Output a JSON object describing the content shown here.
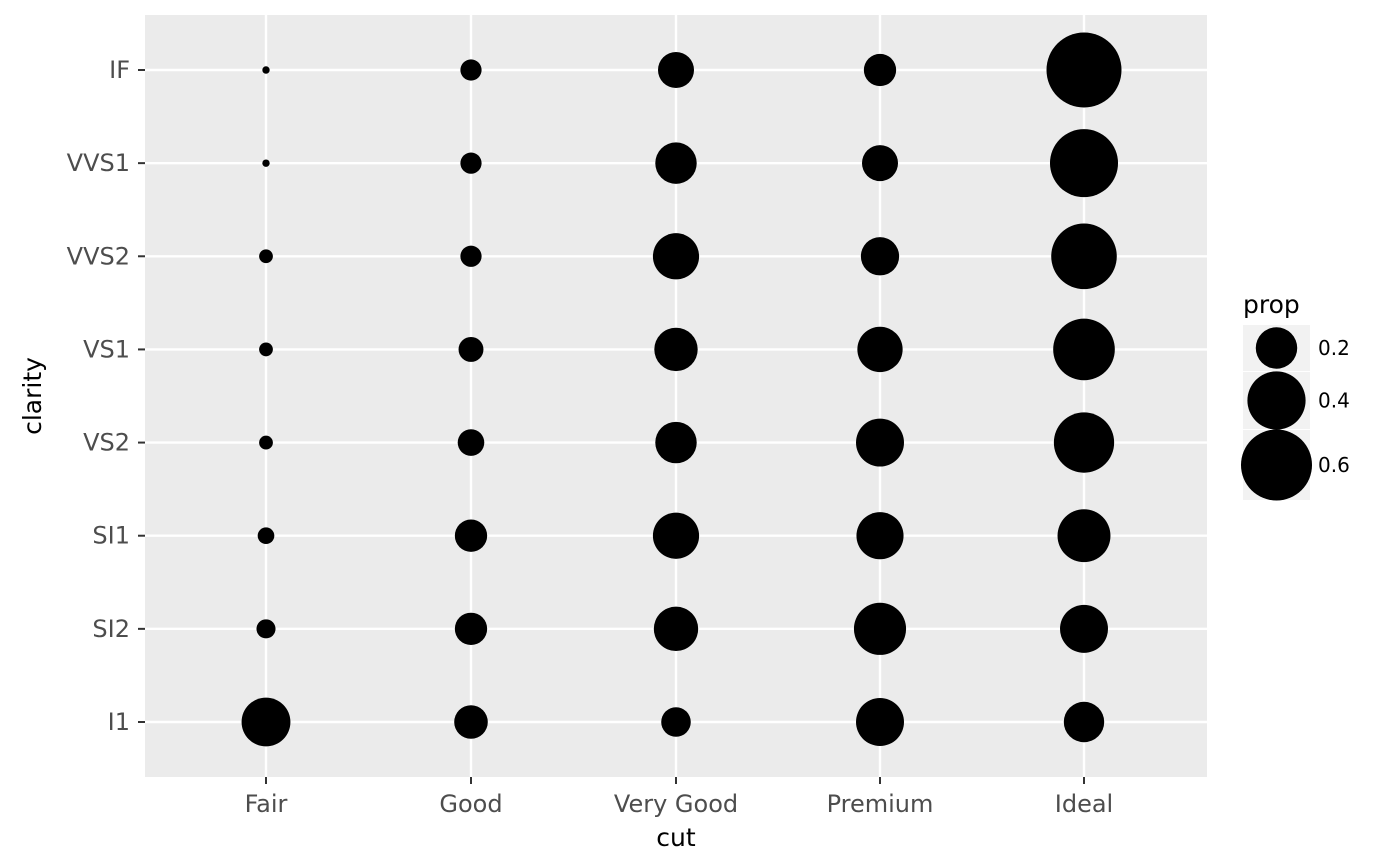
{
  "chart_data": {
    "type": "scatter",
    "title": "",
    "xlabel": "cut",
    "ylabel": "clarity",
    "x_categories": [
      "Fair",
      "Good",
      "Very Good",
      "Premium",
      "Ideal"
    ],
    "y_categories": [
      "I1",
      "SI2",
      "SI1",
      "VS2",
      "VS1",
      "VVS2",
      "VVS1",
      "IF"
    ],
    "size_variable": "prop",
    "points": [
      {
        "x": "Fair",
        "y": "I1",
        "prop": 0.28
      },
      {
        "x": "Fair",
        "y": "SI2",
        "prop": 0.04
      },
      {
        "x": "Fair",
        "y": "SI1",
        "prop": 0.03
      },
      {
        "x": "Fair",
        "y": "VS2",
        "prop": 0.02
      },
      {
        "x": "Fair",
        "y": "VS1",
        "prop": 0.02
      },
      {
        "x": "Fair",
        "y": "VVS2",
        "prop": 0.02
      },
      {
        "x": "Fair",
        "y": "VVS1",
        "prop": 0.005
      },
      {
        "x": "Fair",
        "y": "IF",
        "prop": 0.005
      },
      {
        "x": "Good",
        "y": "I1",
        "prop": 0.13
      },
      {
        "x": "Good",
        "y": "SI2",
        "prop": 0.12
      },
      {
        "x": "Good",
        "y": "SI1",
        "prop": 0.12
      },
      {
        "x": "Good",
        "y": "VS2",
        "prop": 0.08
      },
      {
        "x": "Good",
        "y": "VS1",
        "prop": 0.07
      },
      {
        "x": "Good",
        "y": "VVS2",
        "prop": 0.05
      },
      {
        "x": "Good",
        "y": "VVS1",
        "prop": 0.05
      },
      {
        "x": "Good",
        "y": "IF",
        "prop": 0.05
      },
      {
        "x": "Very Good",
        "y": "I1",
        "prop": 0.1
      },
      {
        "x": "Very Good",
        "y": "SI2",
        "prop": 0.23
      },
      {
        "x": "Very Good",
        "y": "SI1",
        "prop": 0.25
      },
      {
        "x": "Very Good",
        "y": "VS2",
        "prop": 0.2
      },
      {
        "x": "Very Good",
        "y": "VS1",
        "prop": 0.22
      },
      {
        "x": "Very Good",
        "y": "VVS2",
        "prop": 0.25
      },
      {
        "x": "Very Good",
        "y": "VVS1",
        "prop": 0.2
      },
      {
        "x": "Very Good",
        "y": "IF",
        "prop": 0.15
      },
      {
        "x": "Premium",
        "y": "I1",
        "prop": 0.27
      },
      {
        "x": "Premium",
        "y": "SI2",
        "prop": 0.32
      },
      {
        "x": "Premium",
        "y": "SI1",
        "prop": 0.26
      },
      {
        "x": "Premium",
        "y": "VS2",
        "prop": 0.27
      },
      {
        "x": "Premium",
        "y": "VS1",
        "prop": 0.24
      },
      {
        "x": "Premium",
        "y": "VVS2",
        "prop": 0.17
      },
      {
        "x": "Premium",
        "y": "VVS1",
        "prop": 0.15
      },
      {
        "x": "Premium",
        "y": "IF",
        "prop": 0.12
      },
      {
        "x": "Ideal",
        "y": "I1",
        "prop": 0.19
      },
      {
        "x": "Ideal",
        "y": "SI2",
        "prop": 0.27
      },
      {
        "x": "Ideal",
        "y": "SI1",
        "prop": 0.33
      },
      {
        "x": "Ideal",
        "y": "VS2",
        "prop": 0.43
      },
      {
        "x": "Ideal",
        "y": "VS1",
        "prop": 0.45
      },
      {
        "x": "Ideal",
        "y": "VVS2",
        "prop": 0.51
      },
      {
        "x": "Ideal",
        "y": "VVS1",
        "prop": 0.55
      },
      {
        "x": "Ideal",
        "y": "IF",
        "prop": 0.67
      }
    ],
    "legend": {
      "title": "prop",
      "placement": "right",
      "entries": [
        {
          "label": "0.2",
          "value": 0.2
        },
        {
          "label": "0.4",
          "value": 0.4
        },
        {
          "label": "0.6",
          "value": 0.6
        }
      ]
    },
    "grid": true,
    "colors": {
      "panel_background": "#ebebeb",
      "grid_line": "#ffffff",
      "point": "#000000",
      "tick_text": "#4d4d4d",
      "axis_tick": "#333333"
    }
  }
}
